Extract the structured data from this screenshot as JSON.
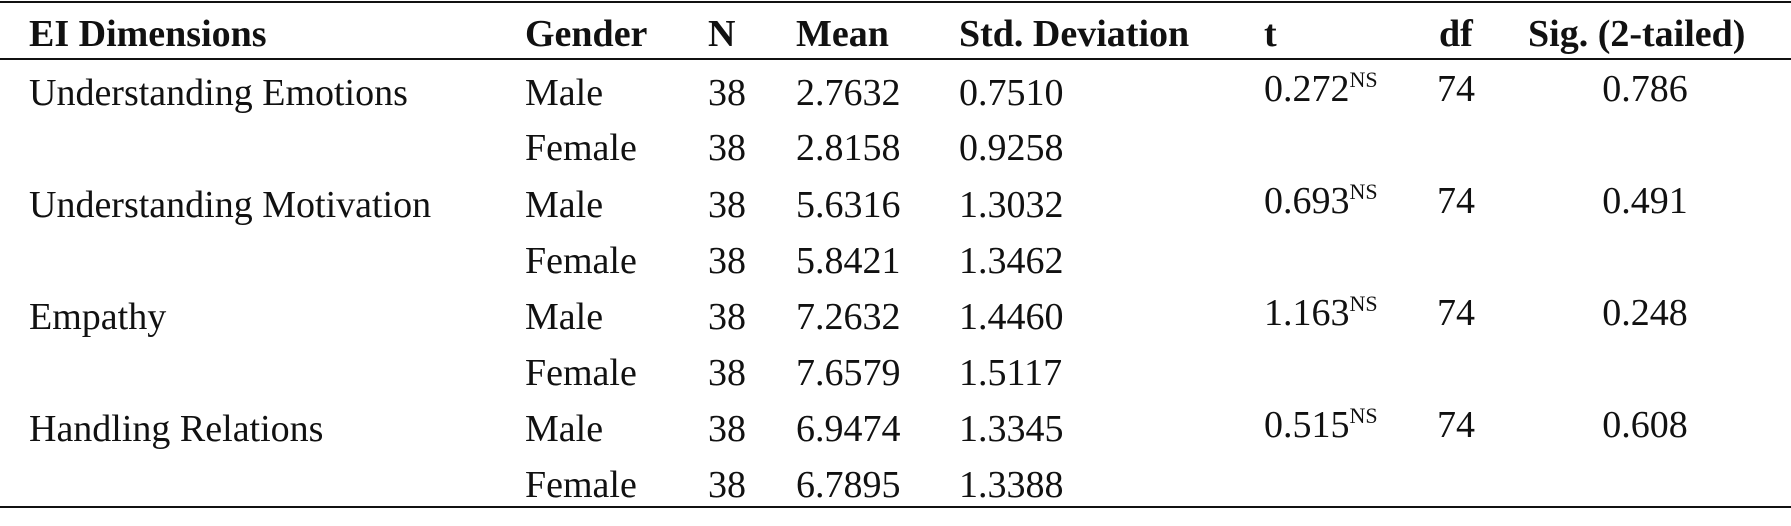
{
  "table": {
    "header": [
      "EI Dimensions",
      "Gender",
      "N",
      "Mean",
      "Std. Deviation",
      "t",
      "df",
      "Sig. (2-tailed)"
    ],
    "groups": [
      {
        "dimension": "Understanding Emotions",
        "t": "0.272",
        "t_note": "NS",
        "df": "74",
        "sig": "0.786",
        "rows": [
          {
            "gender": "Male",
            "n": "38",
            "mean": "2.7632",
            "sd": "0.7510"
          },
          {
            "gender": "Female",
            "n": "38",
            "mean": "2.8158",
            "sd": "0.9258"
          }
        ]
      },
      {
        "dimension": "Understanding Motivation",
        "t": "0.693",
        "t_note": "NS",
        "df": "74",
        "sig": "0.491",
        "rows": [
          {
            "gender": "Male",
            "n": "38",
            "mean": "5.6316",
            "sd": "1.3032"
          },
          {
            "gender": "Female",
            "n": "38",
            "mean": "5.8421",
            "sd": "1.3462"
          }
        ]
      },
      {
        "dimension": "Empathy",
        "t": "1.163",
        "t_note": "NS",
        "df": "74",
        "sig": "0.248",
        "rows": [
          {
            "gender": "Male",
            "n": "38",
            "mean": "7.2632",
            "sd": "1.4460"
          },
          {
            "gender": "Female",
            "n": "38",
            "mean": "7.6579",
            "sd": "1.5117"
          }
        ]
      },
      {
        "dimension": "Handling Relations",
        "t": "0.515",
        "t_note": "NS",
        "df": "74",
        "sig": "0.608",
        "rows": [
          {
            "gender": "Male",
            "n": "38",
            "mean": "6.9474",
            "sd": "1.3345"
          },
          {
            "gender": "Female",
            "n": "38",
            "mean": "6.7895",
            "sd": "1.3388"
          }
        ]
      }
    ]
  }
}
